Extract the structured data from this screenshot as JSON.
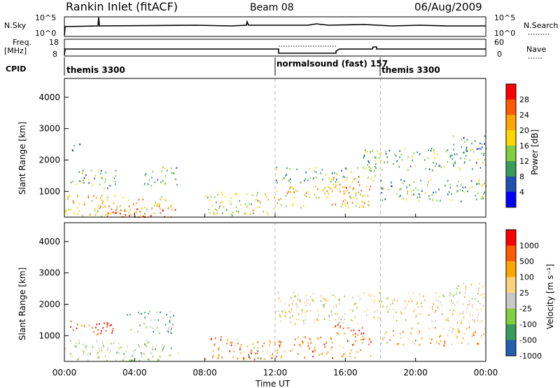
{
  "header": {
    "title": "Rankin Inlet (fitACF)",
    "beam": "Beam 08",
    "date": "06/Aug/2009"
  },
  "panels": {
    "nsky_label": "N.Sky",
    "nsearch_label": "N.Search",
    "nsky_ticks": [
      "10^5",
      "10^0"
    ],
    "freq_label": "Freq.",
    "freq_unit": "[MHz]",
    "freq_ticks": [
      "18",
      "8"
    ],
    "nave_label": "Nave",
    "nave_ticks": [
      "60",
      "0"
    ],
    "cpid_label": "CPID",
    "cpid_segments": [
      {
        "label": "themis 3300",
        "start_hour": 0
      },
      {
        "label": "normalsound (fast) 157",
        "start_hour": 12
      },
      {
        "label": "themis 3300",
        "start_hour": 18
      }
    ]
  },
  "colors": {
    "power_scale": [
      "#0000ff",
      "#1f4fb0",
      "#3a9a5a",
      "#7fcf3f",
      "#ffd700",
      "#ffa500",
      "#ff5a00",
      "#ff0000"
    ],
    "velocity_scale": [
      "#ff0000",
      "#ff5a00",
      "#ffa500",
      "#ffd27a",
      "#c8c8c8",
      "#7fcf3f",
      "#3a9a5a",
      "#2060b0"
    ],
    "dashed_line": "#bbbbbb"
  },
  "chart_data": [
    {
      "type": "heatmap",
      "name": "power",
      "xlabel": "",
      "ylabel": "Slant Range [km]",
      "xlim": [
        0,
        24
      ],
      "ylim": [
        180,
        4600
      ],
      "yticks": [
        1000,
        2000,
        3000,
        4000
      ],
      "colorbar_label": "Power [dB]",
      "colorbar_ticks": [
        "4",
        "8",
        "12",
        "16",
        "20",
        "24",
        "28"
      ],
      "colorbar_range": [
        0,
        30
      ],
      "regions": [
        {
          "t0": 0.0,
          "t1": 6.2,
          "r0": 200,
          "r1": 900,
          "v": 20
        },
        {
          "t0": 2.0,
          "t1": 6.5,
          "r0": 200,
          "r1": 500,
          "v": 28
        },
        {
          "t0": 0.3,
          "t1": 3.0,
          "r0": 1100,
          "r1": 1700,
          "v": 14
        },
        {
          "t0": 4.5,
          "t1": 6.5,
          "r0": 1200,
          "r1": 1800,
          "v": 12
        },
        {
          "t0": 0.4,
          "t1": 1.0,
          "r0": 2300,
          "r1": 2600,
          "v": 6
        },
        {
          "t0": 8.0,
          "t1": 12.0,
          "r0": 250,
          "r1": 1000,
          "v": 16
        },
        {
          "t0": 12.0,
          "t1": 17.5,
          "r0": 500,
          "r1": 1200,
          "v": 20
        },
        {
          "t0": 12.0,
          "t1": 17.8,
          "r0": 1300,
          "r1": 1800,
          "v": 14
        },
        {
          "t0": 15.0,
          "t1": 17.0,
          "r0": 1000,
          "r1": 1500,
          "v": 26
        },
        {
          "t0": 17.0,
          "t1": 24.0,
          "r0": 1700,
          "r1": 2400,
          "v": 12
        },
        {
          "t0": 18.0,
          "t1": 24.0,
          "r0": 700,
          "r1": 1400,
          "v": 14
        },
        {
          "t0": 22.0,
          "t1": 24.0,
          "r0": 2300,
          "r1": 2800,
          "v": 8
        }
      ]
    },
    {
      "type": "heatmap",
      "name": "velocity",
      "xlabel": "Time UT",
      "ylabel": "Slant Range [km]",
      "xlim": [
        0,
        24
      ],
      "ylim": [
        180,
        4600
      ],
      "xticks": [
        "00:00",
        "04:00",
        "08:00",
        "12:00",
        "16:00",
        "20:00",
        "00:00"
      ],
      "yticks": [
        1000,
        2000,
        3000,
        4000
      ],
      "colorbar_label": "Velocity [m s⁻¹]",
      "colorbar_ticks": [
        "1000",
        "500",
        "100",
        "25",
        "-25",
        "-100",
        "-500",
        "-1000"
      ],
      "regions": [
        {
          "t0": 0.0,
          "t1": 6.5,
          "r0": 200,
          "r1": 900,
          "v": 5
        },
        {
          "t0": 0.3,
          "t1": 3.0,
          "r0": 1000,
          "r1": 1500,
          "v": 1
        },
        {
          "t0": 3.5,
          "t1": 6.2,
          "r0": 1100,
          "r1": 1800,
          "v": 6
        },
        {
          "t0": 8.0,
          "t1": 12.0,
          "r0": 250,
          "r1": 1000,
          "v": 2
        },
        {
          "t0": 10.4,
          "t1": 11.0,
          "r0": 300,
          "r1": 700,
          "v": 7
        },
        {
          "t0": 12.0,
          "t1": 17.5,
          "r0": 300,
          "r1": 1000,
          "v": 2
        },
        {
          "t0": 15.0,
          "t1": 17.0,
          "r0": 900,
          "r1": 1400,
          "v": 1
        },
        {
          "t0": 12.0,
          "t1": 24.0,
          "r0": 1400,
          "r1": 2400,
          "v": 4
        },
        {
          "t0": 18.0,
          "t1": 24.0,
          "r0": 700,
          "r1": 1300,
          "v": 3
        },
        {
          "t0": 22.0,
          "t1": 24.0,
          "r0": 2200,
          "r1": 2700,
          "v": 4
        }
      ]
    }
  ]
}
